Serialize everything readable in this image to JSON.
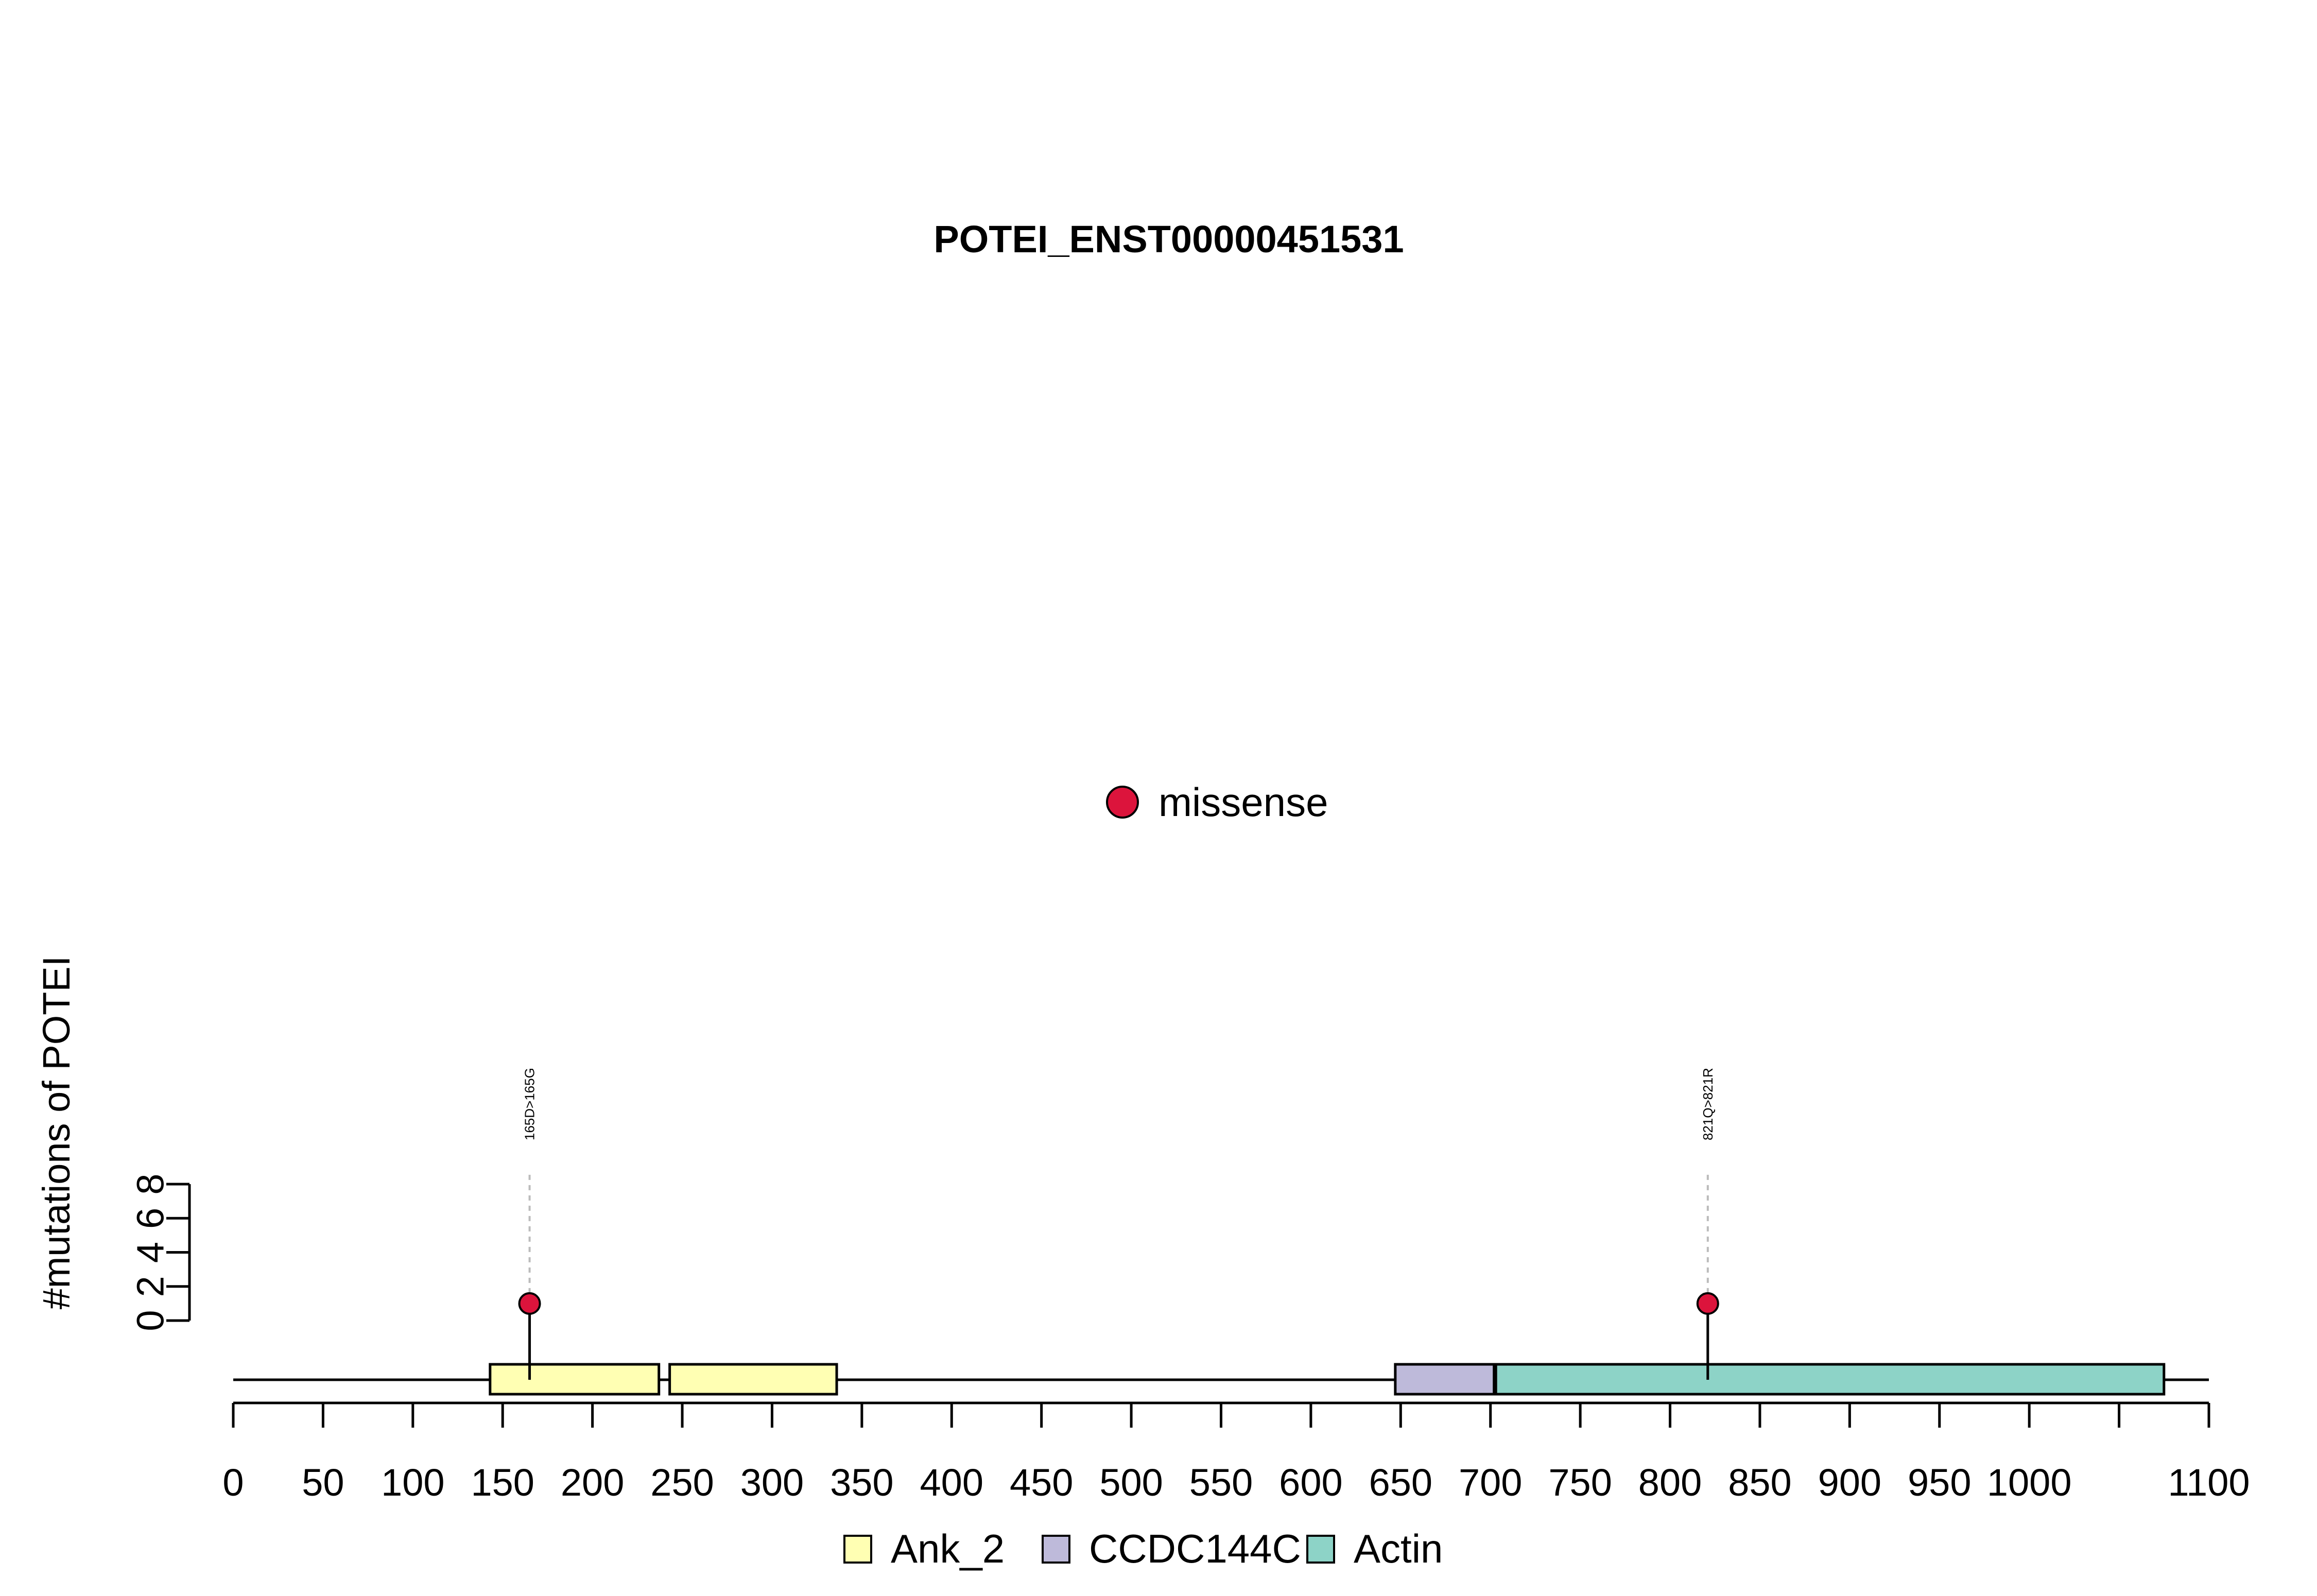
{
  "chart_data": {
    "type": "lollipop",
    "title": "POTEI_ENST00000451531",
    "ylabel": "#mutations of POTEI",
    "xlim": [
      0,
      1100
    ],
    "x_ticks": [
      0,
      50,
      100,
      150,
      200,
      250,
      300,
      350,
      400,
      450,
      500,
      550,
      600,
      650,
      700,
      750,
      800,
      850,
      900,
      950,
      1000,
      1100
    ],
    "y_ticks": [
      0,
      2,
      4,
      6,
      8
    ],
    "ylim": [
      0,
      8
    ],
    "protein_length": 1075,
    "mutation_legend": [
      {
        "label": "missense",
        "color": "#DC143C"
      }
    ],
    "mutations": [
      {
        "position": 165,
        "count": 1,
        "label": "165D>165G",
        "type": "missense",
        "color": "#DC143C"
      },
      {
        "position": 821,
        "count": 1,
        "label": "821Q>821R",
        "type": "missense",
        "color": "#DC143C"
      }
    ],
    "domains": [
      {
        "name": "Ank_2",
        "start": 143,
        "end": 237,
        "color": "#FFFFB3"
      },
      {
        "name": "Ank_2",
        "start": 243,
        "end": 336,
        "color": "#FFFFB3"
      },
      {
        "name": "CCDC144C",
        "start": 647,
        "end": 702,
        "color": "#BEBADA"
      },
      {
        "name": "Actin",
        "start": 703,
        "end": 1075,
        "color": "#8DD3C7"
      }
    ],
    "domain_legend": [
      {
        "label": "Ank_2",
        "color": "#FFFFB3"
      },
      {
        "label": "CCDC144C",
        "color": "#BEBADA"
      },
      {
        "label": "Actin",
        "color": "#8DD3C7"
      }
    ]
  }
}
